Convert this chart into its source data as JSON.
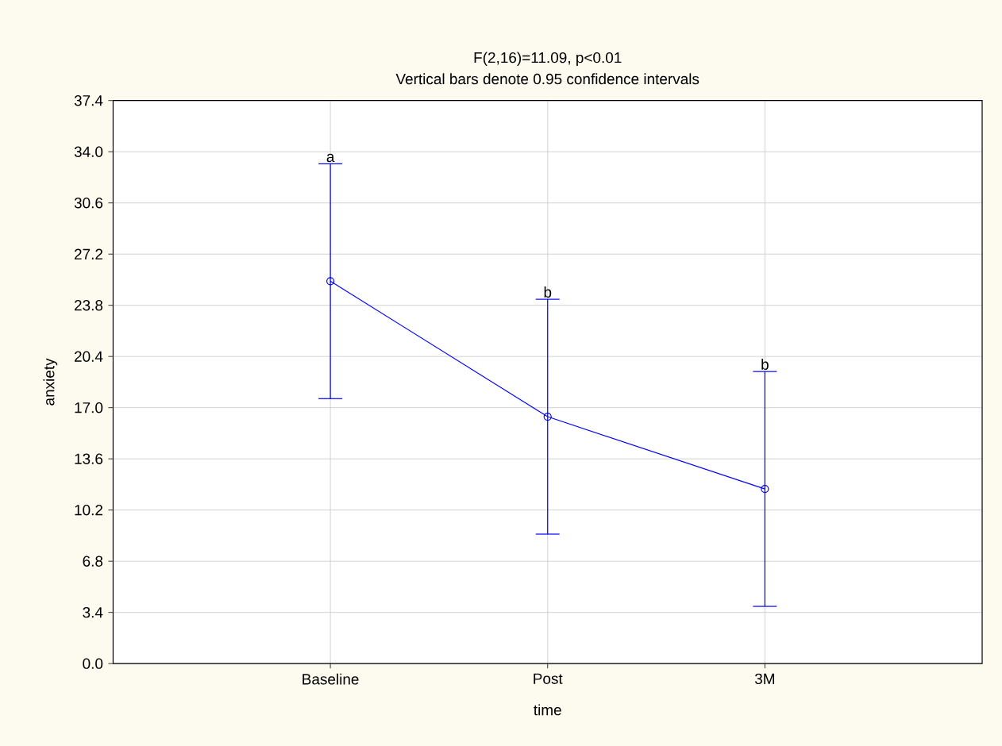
{
  "chart_data": {
    "type": "line",
    "title": "F(2,16)=11.09, p<0.01",
    "subtitle": "Vertical bars denote 0.95 confidence intervals",
    "xlabel": "time",
    "ylabel": "anxiety",
    "categories": [
      "Baseline",
      "Post",
      "3M"
    ],
    "series": [
      {
        "color": "#0000ff",
        "values": [
          25.4,
          16.4,
          11.6
        ],
        "errors": [
          7.8,
          7.8,
          7.8
        ]
      }
    ],
    "ylim": [
      0,
      37.4
    ],
    "yticks": [
      {
        "value": 0,
        "label": "0.0"
      },
      {
        "value": 3.4,
        "label": "3.4"
      },
      {
        "value": 6.8,
        "label": "6.8"
      },
      {
        "value": 10.2,
        "label": "10.2"
      },
      {
        "value": 13.6,
        "label": "13.6"
      },
      {
        "value": 17,
        "label": "17.0"
      },
      {
        "value": 20.4,
        "label": "20.4"
      },
      {
        "value": 23.8,
        "label": "23.8"
      },
      {
        "value": 27.2,
        "label": "27.2"
      },
      {
        "value": 30.6,
        "label": "30.6"
      },
      {
        "value": 34,
        "label": "34.0"
      },
      {
        "value": 37.4,
        "label": "37.4"
      }
    ],
    "annotations": [
      {
        "text": "a",
        "x": "Baseline",
        "y": 33.2
      },
      {
        "text": "b",
        "x": "Post",
        "y": 24.2
      },
      {
        "text": "b",
        "x": "3M",
        "y": 19.4
      }
    ],
    "grid": true,
    "marker": "circle",
    "line_style": "solid"
  }
}
